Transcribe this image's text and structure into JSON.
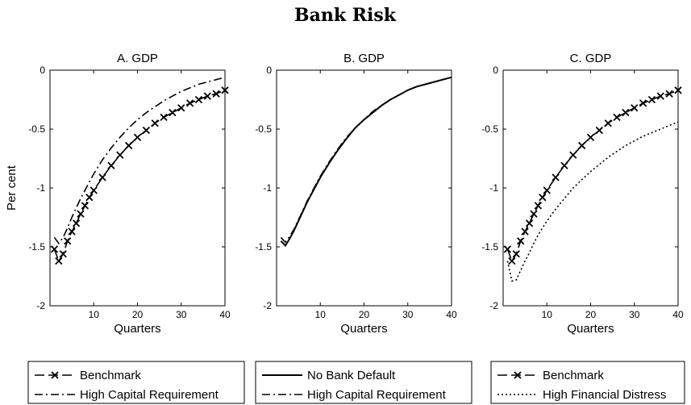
{
  "figure": {
    "title": "Bank Risk"
  },
  "chart_data": [
    {
      "type": "line",
      "title": "A. GDP",
      "xlabel": "Quarters",
      "ylabel": "Per cent",
      "xlim": [
        0,
        40
      ],
      "ylim": [
        -2,
        0
      ],
      "xticks": [
        "10",
        "20",
        "30",
        "40"
      ],
      "yticks": [
        "0",
        "-0.5",
        "-1",
        "-1.5",
        "-2"
      ],
      "x": [
        1,
        2,
        3,
        4,
        5,
        6,
        7,
        8,
        9,
        10,
        12,
        14,
        16,
        18,
        20,
        22,
        24,
        26,
        28,
        30,
        32,
        34,
        36,
        38,
        40
      ],
      "series": [
        {
          "name": "Benchmark",
          "style": "dash-x",
          "values": [
            -1.52,
            -1.62,
            -1.56,
            -1.45,
            -1.37,
            -1.3,
            -1.22,
            -1.15,
            -1.08,
            -1.02,
            -0.91,
            -0.81,
            -0.72,
            -0.64,
            -0.57,
            -0.51,
            -0.45,
            -0.4,
            -0.36,
            -0.32,
            -0.28,
            -0.25,
            -0.22,
            -0.2,
            -0.17
          ]
        },
        {
          "name": "High Capital Requirement",
          "style": "dashdot",
          "values": [
            -1.42,
            -1.47,
            -1.42,
            -1.34,
            -1.25,
            -1.17,
            -1.09,
            -1.02,
            -0.95,
            -0.88,
            -0.76,
            -0.66,
            -0.57,
            -0.49,
            -0.42,
            -0.36,
            -0.31,
            -0.26,
            -0.22,
            -0.18,
            -0.15,
            -0.12,
            -0.1,
            -0.08,
            -0.06
          ]
        }
      ],
      "legend": [
        "Benchmark",
        "High Capital Requirement"
      ]
    },
    {
      "type": "line",
      "title": "B. GDP",
      "xlabel": "Quarters",
      "xlim": [
        0,
        40
      ],
      "ylim": [
        -2,
        0
      ],
      "xticks": [
        "10",
        "20",
        "30",
        "40"
      ],
      "yticks": [
        "0",
        "-0.5",
        "-1",
        "-1.5",
        "-2"
      ],
      "x": [
        1,
        2,
        3,
        4,
        5,
        6,
        7,
        8,
        9,
        10,
        12,
        14,
        16,
        18,
        20,
        22,
        24,
        26,
        28,
        30,
        32,
        34,
        36,
        38,
        40
      ],
      "series": [
        {
          "name": "No Bank Default",
          "style": "solid",
          "values": [
            -1.45,
            -1.49,
            -1.43,
            -1.36,
            -1.28,
            -1.2,
            -1.12,
            -1.05,
            -0.98,
            -0.91,
            -0.79,
            -0.68,
            -0.58,
            -0.49,
            -0.42,
            -0.36,
            -0.3,
            -0.25,
            -0.21,
            -0.17,
            -0.14,
            -0.12,
            -0.1,
            -0.08,
            -0.06
          ]
        },
        {
          "name": "High Capital Requirement",
          "style": "dashdot",
          "values": [
            -1.42,
            -1.46,
            -1.41,
            -1.35,
            -1.27,
            -1.19,
            -1.11,
            -1.04,
            -0.97,
            -0.9,
            -0.78,
            -0.67,
            -0.57,
            -0.49,
            -0.42,
            -0.35,
            -0.3,
            -0.25,
            -0.21,
            -0.17,
            -0.14,
            -0.12,
            -0.1,
            -0.08,
            -0.06
          ]
        }
      ],
      "legend": [
        "No Bank Default",
        "High Capital Requirement"
      ]
    },
    {
      "type": "line",
      "title": "C. GDP",
      "xlabel": "Quarters",
      "xlim": [
        0,
        40
      ],
      "ylim": [
        -2,
        0
      ],
      "xticks": [
        "10",
        "20",
        "30",
        "40"
      ],
      "yticks": [
        "0",
        "-0.5",
        "-1",
        "-1.5",
        "-2"
      ],
      "x": [
        1,
        2,
        3,
        4,
        5,
        6,
        7,
        8,
        9,
        10,
        12,
        14,
        16,
        18,
        20,
        22,
        24,
        26,
        28,
        30,
        32,
        34,
        36,
        38,
        40
      ],
      "series": [
        {
          "name": "Benchmark",
          "style": "dash-x",
          "values": [
            -1.52,
            -1.62,
            -1.56,
            -1.45,
            -1.37,
            -1.3,
            -1.22,
            -1.15,
            -1.08,
            -1.02,
            -0.91,
            -0.81,
            -0.72,
            -0.64,
            -0.57,
            -0.51,
            -0.45,
            -0.4,
            -0.36,
            -0.32,
            -0.28,
            -0.25,
            -0.22,
            -0.2,
            -0.17
          ]
        },
        {
          "name": "High Financial Distress",
          "style": "dotted",
          "values": [
            -1.62,
            -1.79,
            -1.78,
            -1.7,
            -1.62,
            -1.55,
            -1.47,
            -1.4,
            -1.34,
            -1.28,
            -1.18,
            -1.09,
            -1.0,
            -0.93,
            -0.86,
            -0.8,
            -0.74,
            -0.69,
            -0.64,
            -0.6,
            -0.56,
            -0.53,
            -0.5,
            -0.47,
            -0.44
          ]
        }
      ],
      "legend": [
        "Benchmark",
        "High Financial Distress"
      ]
    }
  ]
}
